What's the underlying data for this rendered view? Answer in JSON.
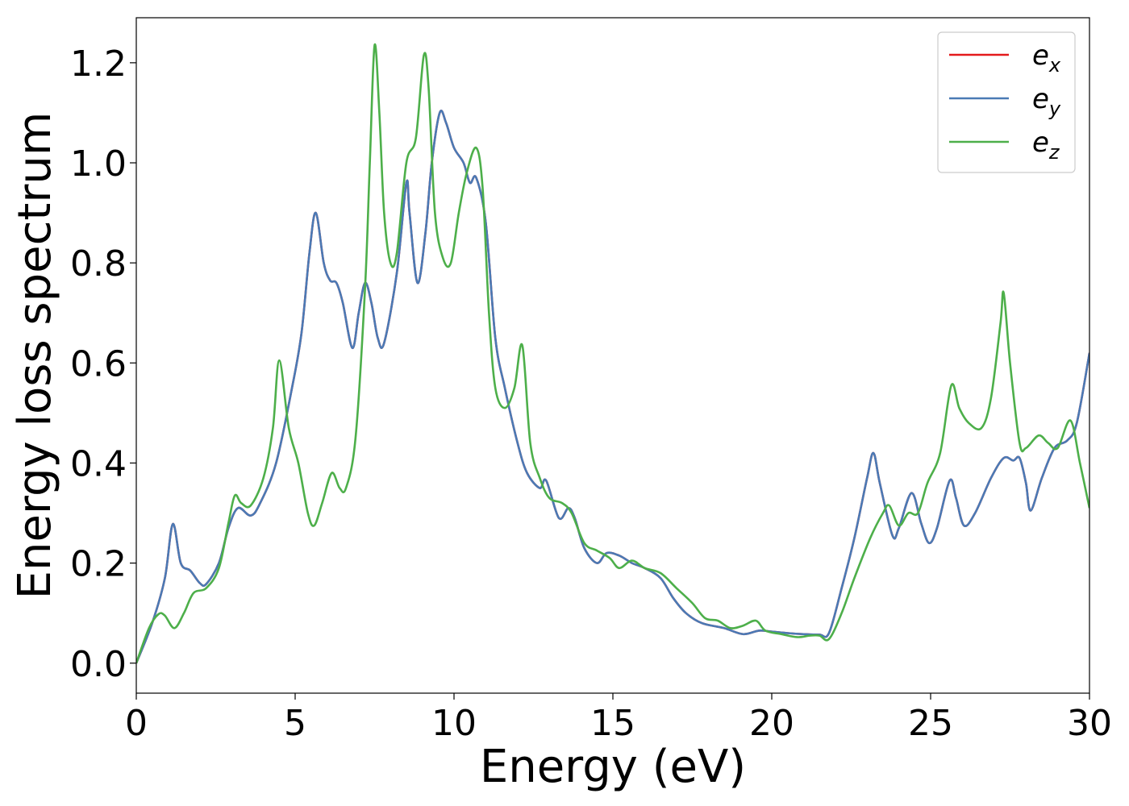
{
  "chart_data": {
    "type": "line",
    "xlabel": "Energy (eV)",
    "ylabel": "Energy loss spectrum",
    "xlim": [
      0,
      30
    ],
    "ylim": [
      -0.06,
      1.29
    ],
    "xticks": [
      0,
      5,
      10,
      15,
      20,
      25,
      30
    ],
    "yticks": [
      0.0,
      0.2,
      0.4,
      0.6,
      0.8,
      1.0,
      1.2
    ],
    "grid": false,
    "legend_position": "top-right",
    "series": [
      {
        "name": "e_x",
        "legend_base": "e",
        "legend_sub": "x",
        "color": "#e41a1c",
        "points": [
          [
            0,
            0
          ],
          [
            0.5,
            0.08
          ],
          [
            0.9,
            0.17
          ],
          [
            1.15,
            0.278
          ],
          [
            1.4,
            0.2
          ],
          [
            1.7,
            0.185
          ],
          [
            2.0,
            0.16
          ],
          [
            2.2,
            0.158
          ],
          [
            2.6,
            0.2
          ],
          [
            2.9,
            0.27
          ],
          [
            3.2,
            0.31
          ],
          [
            3.6,
            0.295
          ],
          [
            3.9,
            0.32
          ],
          [
            4.4,
            0.4
          ],
          [
            4.9,
            0.55
          ],
          [
            5.2,
            0.66
          ],
          [
            5.45,
            0.82
          ],
          [
            5.65,
            0.9
          ],
          [
            5.9,
            0.8
          ],
          [
            6.1,
            0.765
          ],
          [
            6.3,
            0.76
          ],
          [
            6.5,
            0.72
          ],
          [
            6.8,
            0.63
          ],
          [
            7.0,
            0.7
          ],
          [
            7.2,
            0.76
          ],
          [
            7.4,
            0.72
          ],
          [
            7.6,
            0.65
          ],
          [
            7.8,
            0.64
          ],
          [
            8.2,
            0.78
          ],
          [
            8.5,
            0.96
          ],
          [
            8.6,
            0.9
          ],
          [
            8.85,
            0.76
          ],
          [
            9.1,
            0.86
          ],
          [
            9.3,
            1.0
          ],
          [
            9.55,
            1.1
          ],
          [
            9.75,
            1.08
          ],
          [
            10.0,
            1.03
          ],
          [
            10.3,
            1.0
          ],
          [
            10.5,
            0.96
          ],
          [
            10.7,
            0.97
          ],
          [
            11.0,
            0.88
          ],
          [
            11.3,
            0.65
          ],
          [
            11.6,
            0.55
          ],
          [
            12.0,
            0.44
          ],
          [
            12.3,
            0.38
          ],
          [
            12.7,
            0.35
          ],
          [
            12.9,
            0.365
          ],
          [
            13.3,
            0.29
          ],
          [
            13.6,
            0.31
          ],
          [
            13.8,
            0.29
          ],
          [
            14.1,
            0.23
          ],
          [
            14.5,
            0.2
          ],
          [
            14.8,
            0.22
          ],
          [
            15.2,
            0.215
          ],
          [
            15.6,
            0.2
          ],
          [
            16.0,
            0.19
          ],
          [
            16.5,
            0.17
          ],
          [
            16.9,
            0.13
          ],
          [
            17.3,
            0.1
          ],
          [
            17.8,
            0.08
          ],
          [
            18.5,
            0.07
          ],
          [
            19.1,
            0.058
          ],
          [
            19.6,
            0.065
          ],
          [
            20.0,
            0.063
          ],
          [
            20.5,
            0.06
          ],
          [
            21.0,
            0.058
          ],
          [
            21.5,
            0.057
          ],
          [
            21.8,
            0.06
          ],
          [
            22.2,
            0.15
          ],
          [
            22.6,
            0.25
          ],
          [
            23.0,
            0.37
          ],
          [
            23.2,
            0.42
          ],
          [
            23.4,
            0.36
          ],
          [
            23.8,
            0.255
          ],
          [
            24.0,
            0.27
          ],
          [
            24.4,
            0.34
          ],
          [
            24.7,
            0.28
          ],
          [
            24.95,
            0.24
          ],
          [
            25.2,
            0.27
          ],
          [
            25.6,
            0.365
          ],
          [
            25.8,
            0.33
          ],
          [
            26.05,
            0.275
          ],
          [
            26.4,
            0.3
          ],
          [
            26.9,
            0.37
          ],
          [
            27.3,
            0.41
          ],
          [
            27.6,
            0.405
          ],
          [
            27.8,
            0.41
          ],
          [
            28.0,
            0.36
          ],
          [
            28.15,
            0.305
          ],
          [
            28.5,
            0.37
          ],
          [
            28.9,
            0.43
          ],
          [
            29.3,
            0.445
          ],
          [
            29.6,
            0.48
          ],
          [
            30,
            0.62
          ]
        ]
      },
      {
        "name": "e_y",
        "legend_base": "e",
        "legend_sub": "y",
        "color": "#4a7ab5",
        "points": [
          [
            0,
            0
          ],
          [
            0.5,
            0.08
          ],
          [
            0.9,
            0.17
          ],
          [
            1.15,
            0.278
          ],
          [
            1.4,
            0.2
          ],
          [
            1.7,
            0.185
          ],
          [
            2.0,
            0.16
          ],
          [
            2.2,
            0.158
          ],
          [
            2.6,
            0.2
          ],
          [
            2.9,
            0.27
          ],
          [
            3.2,
            0.31
          ],
          [
            3.6,
            0.295
          ],
          [
            3.9,
            0.32
          ],
          [
            4.4,
            0.4
          ],
          [
            4.9,
            0.55
          ],
          [
            5.2,
            0.66
          ],
          [
            5.45,
            0.82
          ],
          [
            5.65,
            0.9
          ],
          [
            5.9,
            0.8
          ],
          [
            6.1,
            0.765
          ],
          [
            6.3,
            0.76
          ],
          [
            6.5,
            0.72
          ],
          [
            6.8,
            0.63
          ],
          [
            7.0,
            0.7
          ],
          [
            7.2,
            0.76
          ],
          [
            7.4,
            0.72
          ],
          [
            7.6,
            0.65
          ],
          [
            7.8,
            0.64
          ],
          [
            8.2,
            0.78
          ],
          [
            8.5,
            0.96
          ],
          [
            8.6,
            0.9
          ],
          [
            8.85,
            0.76
          ],
          [
            9.1,
            0.86
          ],
          [
            9.3,
            1.0
          ],
          [
            9.55,
            1.1
          ],
          [
            9.75,
            1.08
          ],
          [
            10.0,
            1.03
          ],
          [
            10.3,
            1.0
          ],
          [
            10.5,
            0.96
          ],
          [
            10.7,
            0.97
          ],
          [
            11.0,
            0.88
          ],
          [
            11.3,
            0.65
          ],
          [
            11.6,
            0.55
          ],
          [
            12.0,
            0.44
          ],
          [
            12.3,
            0.38
          ],
          [
            12.7,
            0.35
          ],
          [
            12.9,
            0.365
          ],
          [
            13.3,
            0.29
          ],
          [
            13.6,
            0.31
          ],
          [
            13.8,
            0.29
          ],
          [
            14.1,
            0.23
          ],
          [
            14.5,
            0.2
          ],
          [
            14.8,
            0.22
          ],
          [
            15.2,
            0.215
          ],
          [
            15.6,
            0.2
          ],
          [
            16.0,
            0.19
          ],
          [
            16.5,
            0.17
          ],
          [
            16.9,
            0.13
          ],
          [
            17.3,
            0.1
          ],
          [
            17.8,
            0.08
          ],
          [
            18.5,
            0.07
          ],
          [
            19.1,
            0.058
          ],
          [
            19.6,
            0.065
          ],
          [
            20.0,
            0.063
          ],
          [
            20.5,
            0.06
          ],
          [
            21.0,
            0.058
          ],
          [
            21.5,
            0.057
          ],
          [
            21.8,
            0.06
          ],
          [
            22.2,
            0.15
          ],
          [
            22.6,
            0.25
          ],
          [
            23.0,
            0.37
          ],
          [
            23.2,
            0.42
          ],
          [
            23.4,
            0.36
          ],
          [
            23.8,
            0.255
          ],
          [
            24.0,
            0.27
          ],
          [
            24.4,
            0.34
          ],
          [
            24.7,
            0.28
          ],
          [
            24.95,
            0.24
          ],
          [
            25.2,
            0.27
          ],
          [
            25.6,
            0.365
          ],
          [
            25.8,
            0.33
          ],
          [
            26.05,
            0.275
          ],
          [
            26.4,
            0.3
          ],
          [
            26.9,
            0.37
          ],
          [
            27.3,
            0.41
          ],
          [
            27.6,
            0.405
          ],
          [
            27.8,
            0.41
          ],
          [
            28.0,
            0.36
          ],
          [
            28.15,
            0.305
          ],
          [
            28.5,
            0.37
          ],
          [
            28.9,
            0.43
          ],
          [
            29.3,
            0.445
          ],
          [
            29.6,
            0.48
          ],
          [
            30,
            0.62
          ]
        ]
      },
      {
        "name": "e_z",
        "legend_base": "e",
        "legend_sub": "z",
        "color": "#4daf4a",
        "points": [
          [
            0,
            0
          ],
          [
            0.4,
            0.07
          ],
          [
            0.7,
            0.098
          ],
          [
            0.9,
            0.095
          ],
          [
            1.2,
            0.07
          ],
          [
            1.5,
            0.1
          ],
          [
            1.8,
            0.14
          ],
          [
            2.2,
            0.15
          ],
          [
            2.6,
            0.19
          ],
          [
            2.9,
            0.28
          ],
          [
            3.1,
            0.335
          ],
          [
            3.3,
            0.32
          ],
          [
            3.6,
            0.315
          ],
          [
            4.0,
            0.37
          ],
          [
            4.3,
            0.47
          ],
          [
            4.5,
            0.605
          ],
          [
            4.8,
            0.47
          ],
          [
            5.1,
            0.4
          ],
          [
            5.4,
            0.3
          ],
          [
            5.6,
            0.275
          ],
          [
            5.85,
            0.32
          ],
          [
            6.15,
            0.38
          ],
          [
            6.4,
            0.35
          ],
          [
            6.6,
            0.35
          ],
          [
            6.9,
            0.45
          ],
          [
            7.2,
            0.75
          ],
          [
            7.35,
            1.0
          ],
          [
            7.5,
            1.235
          ],
          [
            7.65,
            1.1
          ],
          [
            7.8,
            0.9
          ],
          [
            8.0,
            0.8
          ],
          [
            8.2,
            0.82
          ],
          [
            8.5,
            1.0
          ],
          [
            8.8,
            1.05
          ],
          [
            9.05,
            1.215
          ],
          [
            9.2,
            1.15
          ],
          [
            9.4,
            0.9
          ],
          [
            9.65,
            0.81
          ],
          [
            9.9,
            0.8
          ],
          [
            10.15,
            0.9
          ],
          [
            10.4,
            0.98
          ],
          [
            10.7,
            1.03
          ],
          [
            10.9,
            0.95
          ],
          [
            11.1,
            0.7
          ],
          [
            11.3,
            0.55
          ],
          [
            11.6,
            0.51
          ],
          [
            11.9,
            0.55
          ],
          [
            12.15,
            0.635
          ],
          [
            12.4,
            0.44
          ],
          [
            12.7,
            0.37
          ],
          [
            13.0,
            0.33
          ],
          [
            13.4,
            0.32
          ],
          [
            13.7,
            0.3
          ],
          [
            14.1,
            0.24
          ],
          [
            14.5,
            0.225
          ],
          [
            14.9,
            0.21
          ],
          [
            15.2,
            0.19
          ],
          [
            15.6,
            0.205
          ],
          [
            16.0,
            0.19
          ],
          [
            16.5,
            0.18
          ],
          [
            17.0,
            0.15
          ],
          [
            17.5,
            0.12
          ],
          [
            17.9,
            0.09
          ],
          [
            18.3,
            0.085
          ],
          [
            18.7,
            0.07
          ],
          [
            19.1,
            0.075
          ],
          [
            19.5,
            0.085
          ],
          [
            19.8,
            0.065
          ],
          [
            20.3,
            0.058
          ],
          [
            20.8,
            0.052
          ],
          [
            21.2,
            0.055
          ],
          [
            21.5,
            0.055
          ],
          [
            21.8,
            0.048
          ],
          [
            22.2,
            0.1
          ],
          [
            22.6,
            0.17
          ],
          [
            23.1,
            0.25
          ],
          [
            23.5,
            0.3
          ],
          [
            23.7,
            0.315
          ],
          [
            24.0,
            0.275
          ],
          [
            24.3,
            0.3
          ],
          [
            24.6,
            0.3
          ],
          [
            24.9,
            0.36
          ],
          [
            25.3,
            0.42
          ],
          [
            25.65,
            0.555
          ],
          [
            25.9,
            0.51
          ],
          [
            26.2,
            0.48
          ],
          [
            26.6,
            0.47
          ],
          [
            26.9,
            0.53
          ],
          [
            27.2,
            0.68
          ],
          [
            27.3,
            0.74
          ],
          [
            27.5,
            0.6
          ],
          [
            27.8,
            0.44
          ],
          [
            28.0,
            0.43
          ],
          [
            28.4,
            0.455
          ],
          [
            28.7,
            0.44
          ],
          [
            29.0,
            0.43
          ],
          [
            29.4,
            0.485
          ],
          [
            29.7,
            0.4
          ],
          [
            30,
            0.31
          ]
        ]
      }
    ]
  }
}
